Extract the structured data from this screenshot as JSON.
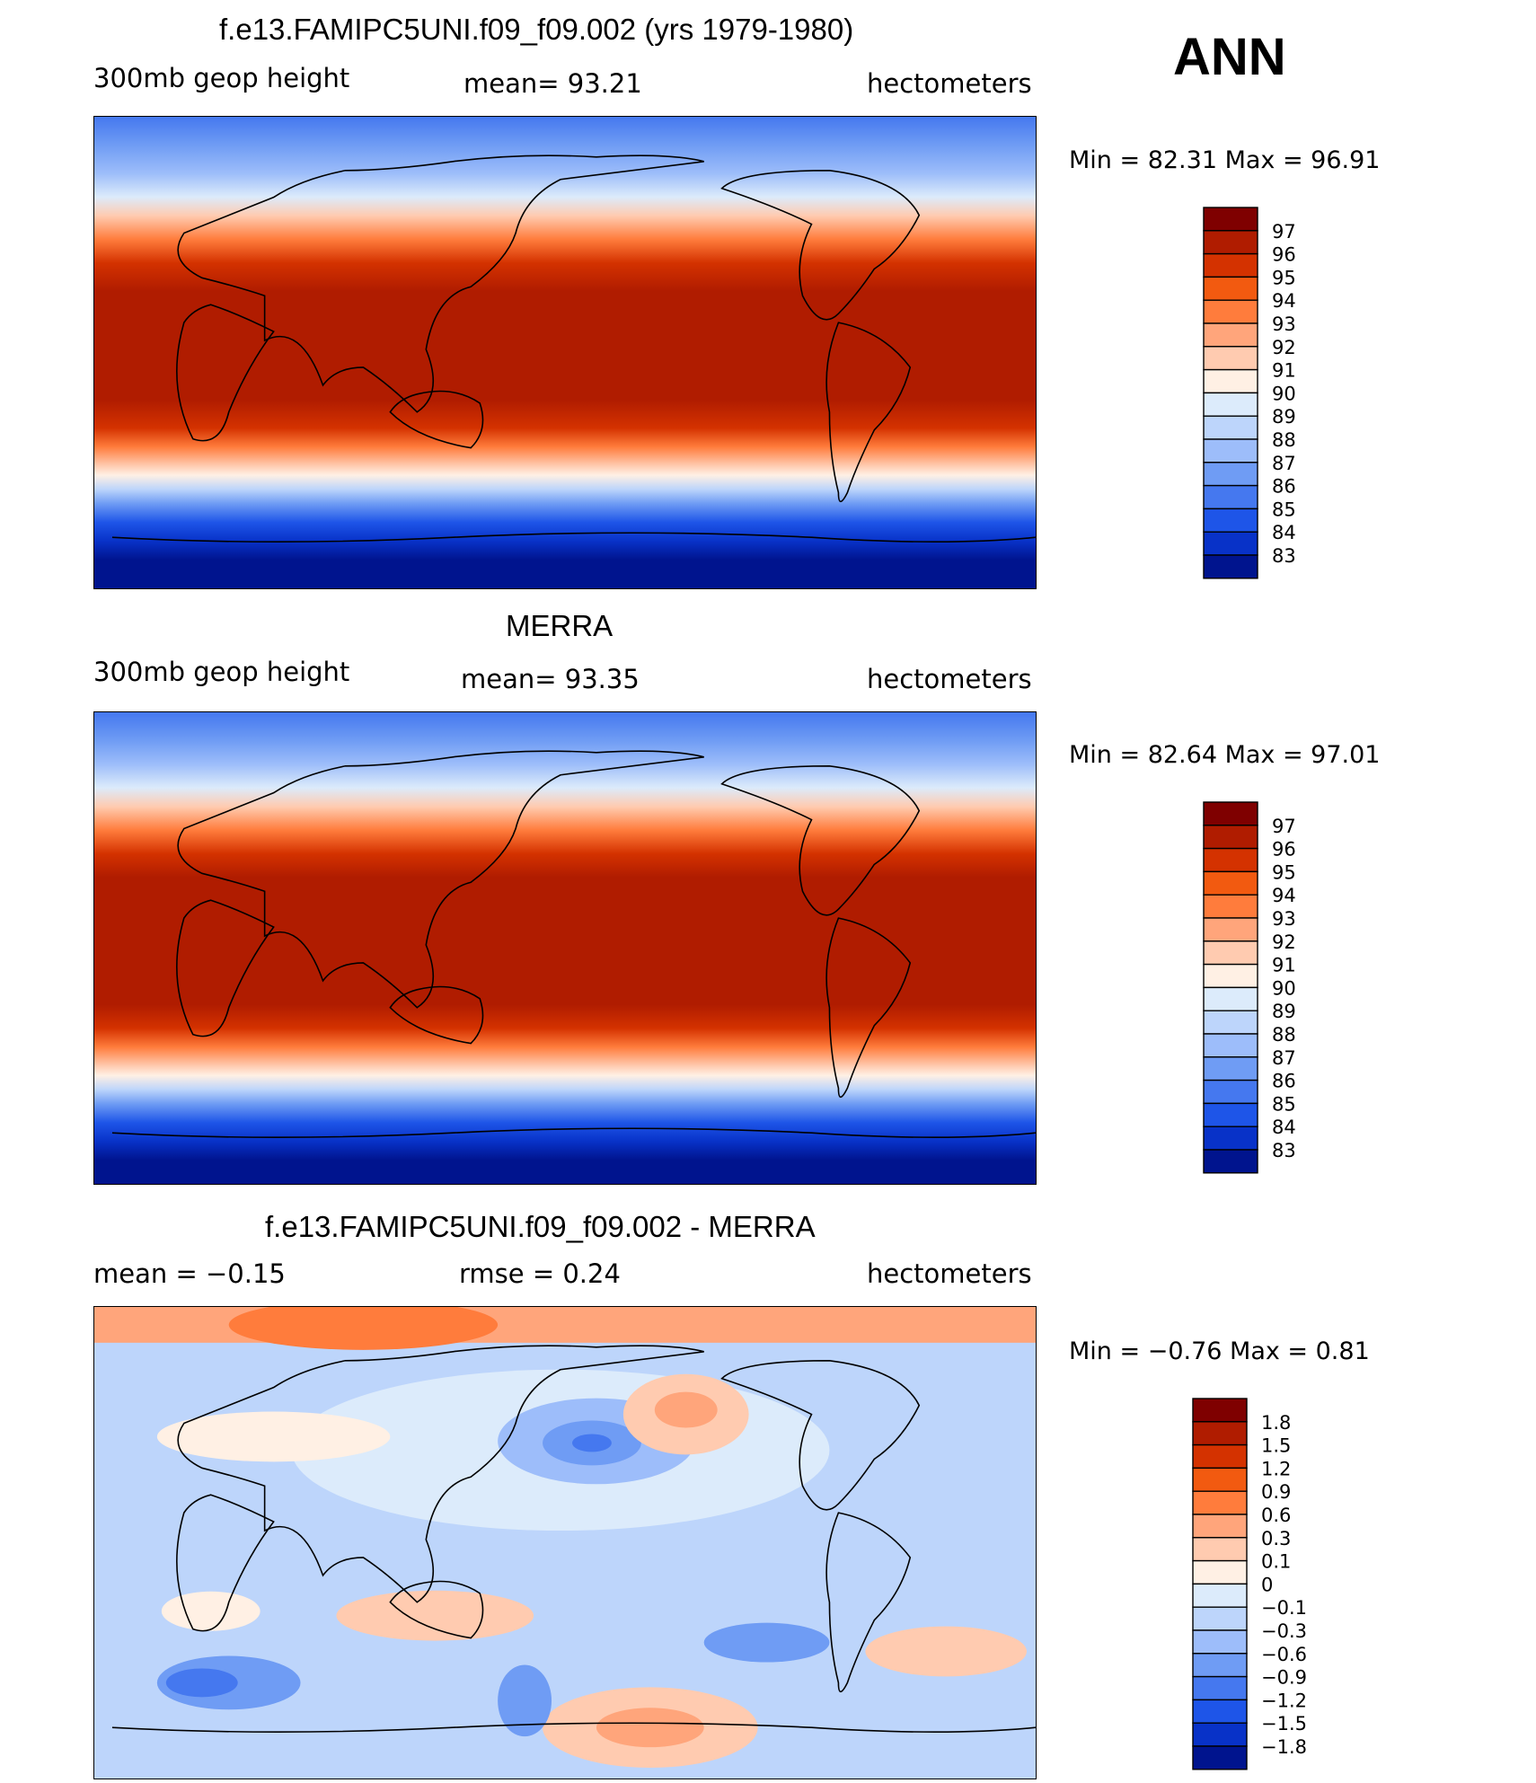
{
  "season": "ANN",
  "units": "hectometers",
  "panels": [
    {
      "title": "f.e13.FAMIPC5UNI.f09_f09.002 (yrs 1979-1980)",
      "left_label": "300mb  geop  height",
      "center_label": "mean=   93.21",
      "right_label": "hectometers",
      "minmax": "Min  =    82.31  Max  =    96.91"
    },
    {
      "title": "MERRA",
      "left_label": "300mb  geop  height",
      "center_label": "mean=   93.35",
      "right_label": "hectometers",
      "minmax": "Min  =    82.64  Max  =    97.01"
    },
    {
      "title": "f.e13.FAMIPC5UNI.f09_f09.002 - MERRA",
      "left_label": "mean  =    −0.15",
      "center_label": "rmse  =     0.24",
      "right_label": "hectometers",
      "minmax": "Min  =    −0.76  Max  =      0.81"
    }
  ],
  "chart_data": [
    {
      "type": "heatmap",
      "title": "f.e13.FAMIPC5UNI.f09_f09.002 (yrs 1979-1980)",
      "variable": "300mb geop height",
      "units": "hectometers",
      "mean": 93.21,
      "min": 82.31,
      "max": 96.91,
      "levels": [
        83,
        84,
        85,
        86,
        87,
        88,
        89,
        90,
        91,
        92,
        93,
        94,
        95,
        96,
        97
      ],
      "level_labels": [
        "97",
        "96",
        "95",
        "94",
        "93",
        "92",
        "91",
        "90",
        "89",
        "88",
        "87",
        "86",
        "85",
        "84",
        "83"
      ],
      "colors": [
        "#7f0000",
        "#b01c00",
        "#d43200",
        "#f25a10",
        "#ff7c3c",
        "#ffa57b",
        "#ffcbb0",
        "#fff0e4",
        "#dcebfb",
        "#bdd5fb",
        "#9dbdfa",
        "#6f9cf4",
        "#4578ef",
        "#1e55e8",
        "#0832c8",
        "#00148e"
      ]
    },
    {
      "type": "heatmap",
      "title": "MERRA",
      "variable": "300mb geop height",
      "units": "hectometers",
      "mean": 93.35,
      "min": 82.64,
      "max": 97.01,
      "levels": [
        83,
        84,
        85,
        86,
        87,
        88,
        89,
        90,
        91,
        92,
        93,
        94,
        95,
        96,
        97
      ],
      "level_labels": [
        "97",
        "96",
        "95",
        "94",
        "93",
        "92",
        "91",
        "90",
        "89",
        "88",
        "87",
        "86",
        "85",
        "84",
        "83"
      ],
      "colors": [
        "#7f0000",
        "#b01c00",
        "#d43200",
        "#f25a10",
        "#ff7c3c",
        "#ffa57b",
        "#ffcbb0",
        "#fff0e4",
        "#dcebfb",
        "#bdd5fb",
        "#9dbdfa",
        "#6f9cf4",
        "#4578ef",
        "#1e55e8",
        "#0832c8",
        "#00148e"
      ]
    },
    {
      "type": "heatmap",
      "title": "f.e13.FAMIPC5UNI.f09_f09.002 - MERRA",
      "units": "hectometers",
      "mean": -0.15,
      "rmse": 0.24,
      "min": -0.76,
      "max": 0.81,
      "levels": [
        -1.8,
        -1.5,
        -1.2,
        -0.9,
        -0.6,
        -0.3,
        -0.1,
        0,
        0.1,
        0.3,
        0.6,
        0.9,
        1.2,
        1.5,
        1.8
      ],
      "level_labels": [
        "1.8",
        "1.5",
        "1.2",
        "0.9",
        "0.6",
        "0.3",
        "0.1",
        "0",
        "−0.1",
        "−0.3",
        "−0.6",
        "−0.9",
        "−1.2",
        "−1.5",
        "−1.8"
      ],
      "colors": [
        "#7f0000",
        "#b01c00",
        "#d43200",
        "#f25a10",
        "#ff7c3c",
        "#ffa57b",
        "#ffcbb0",
        "#fff0e4",
        "#dcebfb",
        "#bdd5fb",
        "#9dbdfa",
        "#6f9cf4",
        "#4578ef",
        "#1e55e8",
        "#0832c8",
        "#00148e"
      ]
    }
  ]
}
